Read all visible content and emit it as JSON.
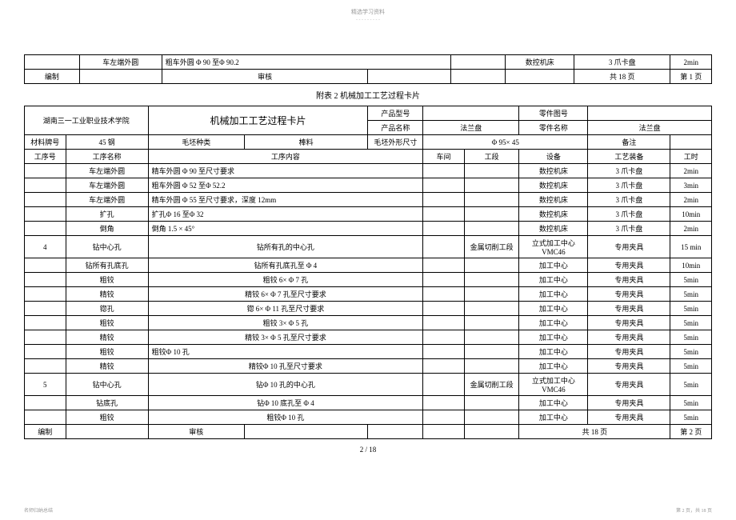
{
  "watermark_top": "精选学习资料",
  "watermark_line": "- - - - - - - - -",
  "table1": {
    "r1": {
      "c2": "车左端外圆",
      "c3": "粗车外圆 Φ 90 至Φ 90.2",
      "c6": "数控机床",
      "c7": "3 爪卡盘",
      "c8": "2min"
    },
    "r2": {
      "c1": "编制",
      "c3": "审核",
      "c6": "共 18 页",
      "c7": "第 1 页"
    }
  },
  "caption": "附表 2  机械加工工艺过程卡片",
  "hdr": {
    "school": "湖南三一工业职业技术学院",
    "title": "机械加工工艺过程卡片",
    "prod_model_lbl": "产品型号",
    "part_no_lbl": "零件图号",
    "prod_name_lbl": "产品名称",
    "prod_name_val": "法兰盘",
    "part_name_lbl": "零件名称",
    "part_name_val": "法兰盘",
    "mat_lbl": "材料牌号",
    "mat_val": "45 钢",
    "blank_type_lbl": "毛坯种类",
    "blank_type_val": "棒料",
    "blank_dim_lbl": "毛坯外形尺寸",
    "blank_dim_val": "Φ 95× 45",
    "remark_lbl": "备注"
  },
  "cols": {
    "seq": "工序号",
    "name": "工序名称",
    "content": "工序内容",
    "shop": "车间",
    "section": "工段",
    "equip": "设备",
    "tool": "工艺装备",
    "time": "工时"
  },
  "rows": [
    {
      "seq": "",
      "name": "车左端外圆",
      "content": "精车外圆 Φ 90 至尺寸要求",
      "shop": "",
      "section": "",
      "equip": "数控机床",
      "tool": "3 爪卡盘",
      "time": "2min"
    },
    {
      "seq": "",
      "name": "车左端外圆",
      "content": "粗车外圆 Φ 52 至Φ 52.2",
      "shop": "",
      "section": "",
      "equip": "数控机床",
      "tool": "3 爪卡盘",
      "time": "3min"
    },
    {
      "seq": "",
      "name": "车左端外圆",
      "content": "精车外圆 Φ 55 至尺寸要求，深度    12mm",
      "shop": "",
      "section": "",
      "equip": "数控机床",
      "tool": "3 爪卡盘",
      "time": "2min"
    },
    {
      "seq": "",
      "name": "扩孔",
      "content": "扩孔Φ 16 至Φ 32",
      "shop": "",
      "section": "",
      "equip": "数控机床",
      "tool": "3 爪卡盘",
      "time": "10min"
    },
    {
      "seq": "",
      "name": "倒角",
      "content": "倒角 1.5 × 45°",
      "shop": "",
      "section": "",
      "equip": "数控机床",
      "tool": "3 爪卡盘",
      "time": "2min"
    },
    {
      "seq": "4",
      "name": "钻中心孔",
      "content": "钻所有孔的中心孔",
      "shop": "",
      "section": "金属切削工段",
      "equip": "立式加工中心VMC46",
      "tool": "专用夹具",
      "time": "15 min",
      "tall": true
    },
    {
      "seq": "",
      "name": "钻所有孔底孔",
      "content": "钻所有孔底孔至  Φ 4",
      "shop": "",
      "section": "",
      "equip": "加工中心",
      "tool": "专用夹具",
      "time": "10min"
    },
    {
      "seq": "",
      "name": "粗铰",
      "content": "粗铰  6× Φ 7 孔",
      "shop": "",
      "section": "",
      "equip": "加工中心",
      "tool": "专用夹具",
      "time": "5min"
    },
    {
      "seq": "",
      "name": "精铰",
      "content": "精铰  6× Φ 7 孔至尺寸要求",
      "shop": "",
      "section": "",
      "equip": "加工中心",
      "tool": "专用夹具",
      "time": "5min"
    },
    {
      "seq": "",
      "name": "锪孔",
      "content": "锪 6× Φ 11 孔至尺寸要求",
      "shop": "",
      "section": "",
      "equip": "加工中心",
      "tool": "专用夹具",
      "time": "5min"
    },
    {
      "seq": "",
      "name": "粗铰",
      "content": "粗铰  3× Φ 5 孔",
      "shop": "",
      "section": "",
      "equip": "加工中心",
      "tool": "专用夹具",
      "time": "5min"
    },
    {
      "seq": "",
      "name": "精铰",
      "content": "精铰  3× Φ 5 孔至尺寸要求",
      "shop": "",
      "section": "",
      "equip": "加工中心",
      "tool": "专用夹具",
      "time": "5min"
    },
    {
      "seq": "",
      "name": "粗铰",
      "content": "粗铰Φ 10 孔",
      "shop": "",
      "section": "",
      "equip": "加工中心",
      "tool": "专用夹具",
      "time": "5min"
    },
    {
      "seq": "",
      "name": "精铰",
      "content": "精铰Φ 10 孔至尺寸要求",
      "shop": "",
      "section": "",
      "equip": "加工中心",
      "tool": "专用夹具",
      "time": "5min"
    },
    {
      "seq": "5",
      "name": "钻中心孔",
      "content": "钻Φ 10 孔的中心孔",
      "shop": "",
      "section": "金属切削工段",
      "equip": "立式加工中心VMC46",
      "tool": "专用夹具",
      "time": "5min",
      "tall": true
    },
    {
      "seq": "",
      "name": "钻底孔",
      "content": "钻Φ 10 底孔至 Φ 4",
      "shop": "",
      "section": "",
      "equip": "加工中心",
      "tool": "专用夹具",
      "time": "5min"
    },
    {
      "seq": "",
      "name": "粗铰",
      "content": "粗铰Φ 10 孔",
      "shop": "",
      "section": "",
      "equip": "加工中心",
      "tool": "专用夹具",
      "time": "5min"
    }
  ],
  "footer": {
    "edit": "编制",
    "review": "审核",
    "pages": "共 18 页",
    "page": "第 2 页"
  },
  "page_num": "2 / 18",
  "footer_left": "名师归纳总结",
  "footer_right": "第 2 页，共 18 页"
}
